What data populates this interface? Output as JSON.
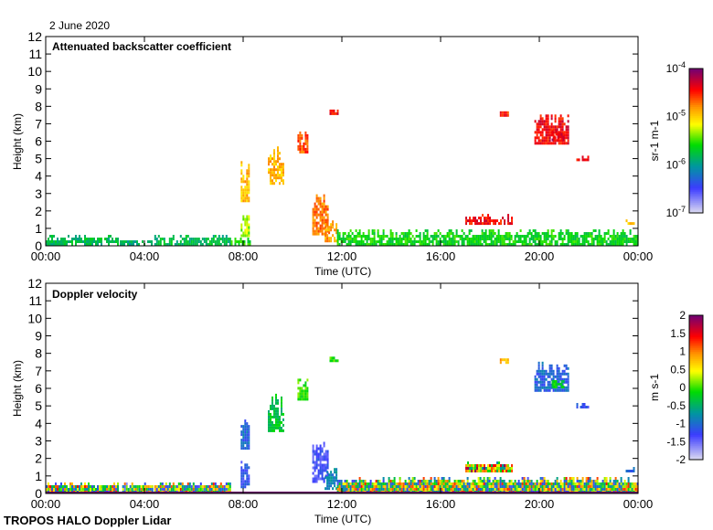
{
  "date": "2 June 2020",
  "footer": "TROPOS HALO Doppler Lidar",
  "chart_data": [
    {
      "type": "heatmap",
      "title": "Attenuated backscatter coefficient",
      "xlabel": "Time (UTC)",
      "ylabel": "Height (km)",
      "xlim": [
        0,
        24
      ],
      "ylim": [
        0,
        12
      ],
      "xticks": [
        "00:00",
        "04:00",
        "08:00",
        "12:00",
        "16:00",
        "20:00",
        "00:00"
      ],
      "yticks": [
        "0",
        "1",
        "2",
        "3",
        "4",
        "5",
        "6",
        "7",
        "8",
        "9",
        "10",
        "11",
        "12"
      ],
      "colorbar": {
        "label": "sr-1 m-1",
        "scale": "log",
        "range": [
          -7,
          -4
        ],
        "ticks": [
          "10-7",
          "10-6",
          "10-5",
          "10-4"
        ]
      },
      "features": [
        {
          "t": [
            0.0,
            2.9
          ],
          "h": [
            0,
            0.55
          ],
          "value": -5.8
        },
        {
          "t": [
            3.0,
            4.3
          ],
          "h": [
            0,
            0.25
          ],
          "value": -5.9
        },
        {
          "t": [
            4.4,
            7.5
          ],
          "h": [
            0,
            0.55
          ],
          "value": -5.8
        },
        {
          "t": [
            7.5,
            8.3
          ],
          "h": [
            0,
            0.4
          ],
          "value": -5.6
        },
        {
          "t": [
            7.9,
            8.2
          ],
          "h": [
            0.5,
            1.8
          ],
          "value": -5.3
        },
        {
          "t": [
            7.9,
            8.25
          ],
          "h": [
            2.5,
            4.8
          ],
          "value": -4.9
        },
        {
          "t": [
            9.0,
            9.6
          ],
          "h": [
            3.5,
            5.6
          ],
          "value": -4.9
        },
        {
          "t": [
            10.2,
            10.6
          ],
          "h": [
            5.3,
            6.6
          ],
          "value": -4.6
        },
        {
          "t": [
            10.8,
            11.4
          ],
          "h": [
            0.6,
            3.0
          ],
          "value": -4.7
        },
        {
          "t": [
            11.3,
            11.8
          ],
          "h": [
            0.2,
            1.5
          ],
          "value": -4.8
        },
        {
          "t": [
            11.5,
            11.8
          ],
          "h": [
            7.5,
            7.75
          ],
          "value": -4.4
        },
        {
          "t": [
            11.8,
            24.0
          ],
          "h": [
            0,
            0.9
          ],
          "value": -5.6
        },
        {
          "t": [
            17.0,
            18.9
          ],
          "h": [
            1.2,
            1.7
          ],
          "value": -4.4
        },
        {
          "t": [
            18.4,
            18.7
          ],
          "h": [
            7.4,
            7.7
          ],
          "value": -4.5
        },
        {
          "t": [
            19.8,
            21.2
          ],
          "h": [
            5.8,
            7.5
          ],
          "value": -4.4
        },
        {
          "t": [
            20.5,
            21.0
          ],
          "h": [
            6.0,
            6.5
          ],
          "value": -4.3
        },
        {
          "t": [
            21.5,
            22.0
          ],
          "h": [
            4.85,
            5.05
          ],
          "value": -4.4
        },
        {
          "t": [
            23.5,
            23.8
          ],
          "h": [
            1.2,
            1.4
          ],
          "value": -4.9
        }
      ]
    },
    {
      "type": "heatmap",
      "title": "Doppler velocity",
      "xlabel": "Time (UTC)",
      "ylabel": "Height (km)",
      "xlim": [
        0,
        24
      ],
      "ylim": [
        0,
        12
      ],
      "xticks": [
        "00:00",
        "04:00",
        "08:00",
        "12:00",
        "16:00",
        "20:00",
        "00:00"
      ],
      "yticks": [
        "0",
        "1",
        "2",
        "3",
        "4",
        "5",
        "6",
        "7",
        "8",
        "9",
        "10",
        "11",
        "12"
      ],
      "colorbar": {
        "label": "m s-1",
        "scale": "linear",
        "range": [
          -2,
          2
        ],
        "ticks": [
          "-2",
          "-1.5",
          "-1",
          "-0.5",
          "0",
          "0.5",
          "1",
          "1.5",
          "2"
        ]
      },
      "features": [
        {
          "t": [
            0.0,
            2.9
          ],
          "h": [
            0,
            0.55
          ],
          "value": 0.0,
          "noisy": true
        },
        {
          "t": [
            3.1,
            4.3
          ],
          "h": [
            0,
            0.5
          ],
          "value": -0.3,
          "noisy": true
        },
        {
          "t": [
            4.4,
            7.5
          ],
          "h": [
            0,
            0.6
          ],
          "value": 0.0,
          "noisy": true
        },
        {
          "t": [
            7.9,
            8.2
          ],
          "h": [
            0.3,
            1.8
          ],
          "value": -1.2
        },
        {
          "t": [
            7.9,
            8.25
          ],
          "h": [
            2.5,
            4.8
          ],
          "value": -1.0
        },
        {
          "t": [
            9.0,
            9.6
          ],
          "h": [
            3.5,
            5.6
          ],
          "value": -0.3
        },
        {
          "t": [
            10.2,
            10.6
          ],
          "h": [
            5.3,
            6.6
          ],
          "value": 0.0
        },
        {
          "t": [
            10.8,
            11.4
          ],
          "h": [
            0.6,
            3.0
          ],
          "value": -1.3
        },
        {
          "t": [
            11.3,
            11.8
          ],
          "h": [
            0.2,
            1.5
          ],
          "value": -0.8
        },
        {
          "t": [
            11.5,
            11.8
          ],
          "h": [
            7.5,
            7.75
          ],
          "value": 0.0
        },
        {
          "t": [
            11.8,
            24.0
          ],
          "h": [
            0,
            0.9
          ],
          "value": 0.0,
          "noisy": true
        },
        {
          "t": [
            17.0,
            18.9
          ],
          "h": [
            1.2,
            1.7
          ],
          "value": 0.6,
          "noisy": true
        },
        {
          "t": [
            18.4,
            18.7
          ],
          "h": [
            7.4,
            7.7
          ],
          "value": 0.8
        },
        {
          "t": [
            19.8,
            21.2
          ],
          "h": [
            5.8,
            7.5
          ],
          "value": -1.0
        },
        {
          "t": [
            20.5,
            21.0
          ],
          "h": [
            6.0,
            6.5
          ],
          "value": -0.2
        },
        {
          "t": [
            21.5,
            22.0
          ],
          "h": [
            4.85,
            5.05
          ],
          "value": -1.2
        },
        {
          "t": [
            23.5,
            23.8
          ],
          "h": [
            1.2,
            1.4
          ],
          "value": -1.0
        }
      ]
    }
  ]
}
